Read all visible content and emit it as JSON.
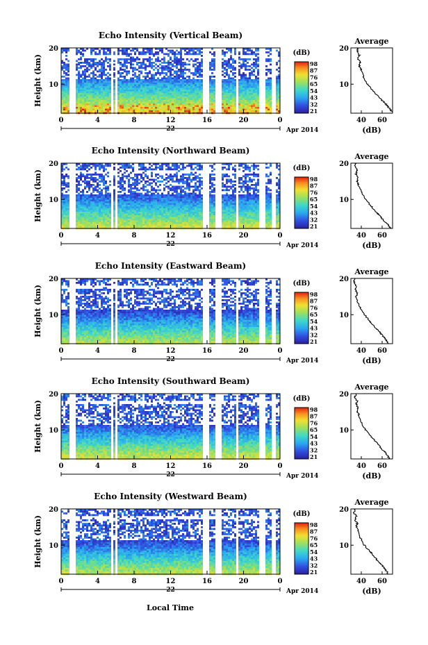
{
  "figure": {
    "colorbar_label": "(dB)",
    "date_label": "Apr 2014",
    "day_label": "22",
    "time_label": "Local Time"
  },
  "chart_data": [
    {
      "type": "heatmap",
      "title": "Echo Intensity (Vertical Beam)",
      "ylabel": "Height (km)",
      "xticks": [
        "0",
        "4",
        "8",
        "12",
        "16",
        "20",
        "0"
      ],
      "yticks": [
        "10",
        "20"
      ],
      "xlim": [
        0,
        24
      ],
      "ylim": [
        2,
        20
      ],
      "colorbar_ticks": [
        "98",
        "87",
        "76",
        "65",
        "54",
        "43",
        "32",
        "21"
      ],
      "profile": {
        "title": "Average",
        "xlabel": "(dB)",
        "xticks": [
          "40",
          "60"
        ],
        "xlim": [
          30,
          70
        ],
        "yticks": [
          "10",
          "20"
        ],
        "height": [
          2,
          3,
          4,
          5,
          6,
          8,
          10,
          12,
          14,
          15,
          16,
          17,
          18,
          19,
          20
        ],
        "value": [
          70,
          68,
          65,
          62,
          58,
          52,
          46,
          42,
          40,
          38,
          39,
          37,
          38,
          36,
          37
        ]
      }
    },
    {
      "type": "heatmap",
      "title": "Echo Intensity (Northward Beam)",
      "ylabel": "Height (km)",
      "xticks": [
        "0",
        "4",
        "8",
        "12",
        "16",
        "20",
        "0"
      ],
      "yticks": [
        "10",
        "20"
      ],
      "xlim": [
        0,
        24
      ],
      "ylim": [
        2,
        20
      ],
      "colorbar_ticks": [
        "98",
        "87",
        "76",
        "65",
        "54",
        "43",
        "32",
        "21"
      ],
      "profile": {
        "title": "Average",
        "xlabel": "(dB)",
        "xticks": [
          "40",
          "60"
        ],
        "xlim": [
          30,
          70
        ],
        "yticks": [
          "10",
          "20"
        ],
        "height": [
          2,
          3,
          4,
          5,
          6,
          8,
          10,
          12,
          14,
          15,
          16,
          17,
          18,
          19,
          20
        ],
        "value": [
          68,
          66,
          62,
          59,
          56,
          50,
          44,
          40,
          37,
          36,
          37,
          35,
          36,
          34,
          35
        ]
      }
    },
    {
      "type": "heatmap",
      "title": "Echo Intensity (Eastward Beam)",
      "ylabel": "Height (km)",
      "xticks": [
        "0",
        "4",
        "8",
        "12",
        "16",
        "20",
        "0"
      ],
      "yticks": [
        "10",
        "20"
      ],
      "xlim": [
        0,
        24
      ],
      "ylim": [
        2,
        20
      ],
      "colorbar_ticks": [
        "98",
        "87",
        "76",
        "65",
        "54",
        "43",
        "32",
        "21"
      ],
      "profile": {
        "title": "Average",
        "xlabel": "(dB)",
        "xticks": [
          "40",
          "60"
        ],
        "xlim": [
          30,
          70
        ],
        "yticks": [
          "10",
          "20"
        ],
        "height": [
          2,
          3,
          4,
          5,
          6,
          8,
          10,
          12,
          14,
          15,
          16,
          17,
          18,
          19,
          20
        ],
        "value": [
          66,
          64,
          61,
          58,
          55,
          49,
          43,
          39,
          36,
          35,
          36,
          34,
          35,
          33,
          34
        ]
      }
    },
    {
      "type": "heatmap",
      "title": "Echo Intensity (Southward Beam)",
      "ylabel": "Height (km)",
      "xticks": [
        "0",
        "4",
        "8",
        "12",
        "16",
        "20",
        "0"
      ],
      "yticks": [
        "10",
        "20"
      ],
      "xlim": [
        0,
        24
      ],
      "ylim": [
        2,
        20
      ],
      "colorbar_ticks": [
        "98",
        "87",
        "76",
        "65",
        "54",
        "43",
        "32",
        "21"
      ],
      "profile": {
        "title": "Average",
        "xlabel": "(dB)",
        "xticks": [
          "40",
          "60"
        ],
        "xlim": [
          30,
          70
        ],
        "yticks": [
          "10",
          "20"
        ],
        "height": [
          2,
          3,
          4,
          5,
          6,
          8,
          10,
          12,
          14,
          15,
          16,
          17,
          18,
          19,
          20
        ],
        "value": [
          67,
          65,
          62,
          59,
          56,
          50,
          44,
          40,
          38,
          36,
          37,
          35,
          36,
          34,
          35
        ]
      }
    },
    {
      "type": "heatmap",
      "title": "Echo Intensity (Westward Beam)",
      "ylabel": "Height (km)",
      "xticks": [
        "0",
        "4",
        "8",
        "12",
        "16",
        "20",
        "0"
      ],
      "yticks": [
        "10",
        "20"
      ],
      "xlim": [
        0,
        24
      ],
      "ylim": [
        2,
        20
      ],
      "colorbar_ticks": [
        "98",
        "87",
        "76",
        "65",
        "54",
        "43",
        "32",
        "21"
      ],
      "profile": {
        "title": "Average",
        "xlabel": "(dB)",
        "xticks": [
          "40",
          "60"
        ],
        "xlim": [
          30,
          70
        ],
        "yticks": [
          "10",
          "20"
        ],
        "height": [
          2,
          3,
          4,
          5,
          6,
          8,
          10,
          12,
          14,
          15,
          16,
          17,
          18,
          19,
          20
        ],
        "value": [
          66,
          64,
          61,
          58,
          55,
          49,
          43,
          39,
          37,
          35,
          36,
          34,
          35,
          33,
          34
        ]
      }
    }
  ]
}
